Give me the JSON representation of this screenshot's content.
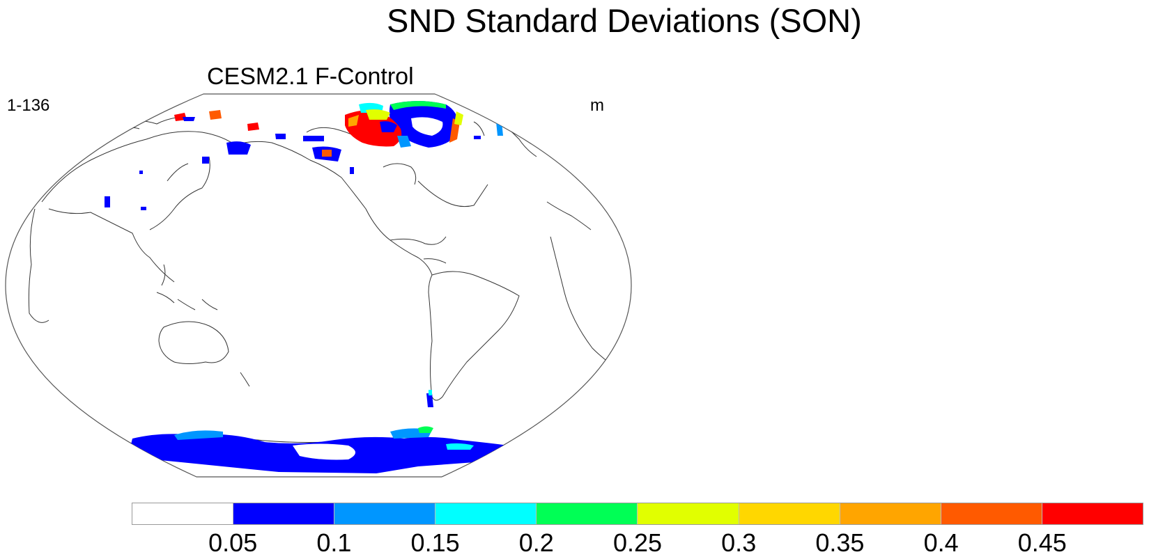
{
  "title": "SND Standard Deviations (SON)",
  "panel": {
    "title": "CESM2.1 F-Control",
    "left_label": "1-136",
    "right_label": "m"
  },
  "legend": {
    "colors": [
      "#ffffff",
      "#0000ff",
      "#0096ff",
      "#00ffff",
      "#00ff55",
      "#e1ff00",
      "#ffd700",
      "#ffa500",
      "#ff5a00",
      "#ff0000"
    ],
    "ticks": [
      "0.05",
      "0.1",
      "0.15",
      "0.2",
      "0.25",
      "0.3",
      "0.35",
      "0.4",
      "0.45"
    ]
  }
}
